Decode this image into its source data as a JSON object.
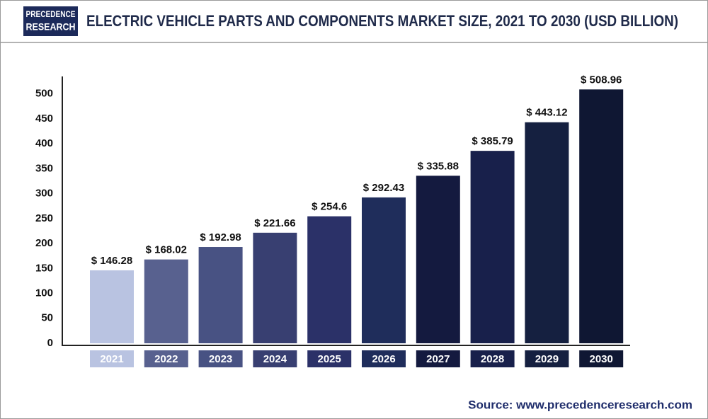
{
  "chart_data": {
    "type": "bar",
    "logo": [
      "PRECEDENCE",
      "RESEARCH"
    ],
    "title": "ELECTRIC VEHICLE PARTS AND COMPONENTS MARKET SIZE, 2021 TO 2030 (USD BILLION)",
    "categories": [
      "2021",
      "2022",
      "2023",
      "2024",
      "2025",
      "2026",
      "2027",
      "2028",
      "2029",
      "2030"
    ],
    "values": [
      146.28,
      168.02,
      192.98,
      221.66,
      254.6,
      292.43,
      335.88,
      385.79,
      443.12,
      508.96
    ],
    "value_labels": [
      "$ 146.28",
      "$ 168.02",
      "$ 192.98",
      "$ 221.66",
      "$ 254.6",
      "$ 292.43",
      "$ 335.88",
      "$ 385.79",
      "$ 443.12",
      "$ 508.96"
    ],
    "colors": [
      "#b9c3e1",
      "#58618f",
      "#485283",
      "#383f71",
      "#2b3168",
      "#1f2d5b",
      "#141a3f",
      "#18204b",
      "#152040",
      "#0f1733"
    ],
    "ylim": [
      0,
      535
    ],
    "yticks": [
      0,
      50,
      100,
      150,
      200,
      250,
      300,
      350,
      400,
      450,
      500
    ],
    "source": "Source: www.precedenceresearch.com"
  }
}
